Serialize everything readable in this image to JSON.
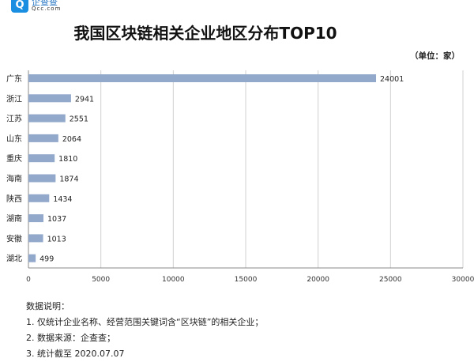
{
  "logo": {
    "name": "企查查",
    "domain": "Qcc.com",
    "accent": "#1a8ee0"
  },
  "chart_data": {
    "type": "bar",
    "orientation": "horizontal",
    "title": "我国区块链相关企业地区分布TOP10",
    "unit": "（单位：家）",
    "categories": [
      "广东",
      "浙江",
      "江苏",
      "山东",
      "重庆",
      "海南",
      "陕西",
      "湖南",
      "安徽",
      "湖北"
    ],
    "values": [
      24001,
      2941,
      2551,
      2064,
      1810,
      1874,
      1434,
      1037,
      1013,
      499
    ],
    "xlim": [
      0,
      30000
    ],
    "xticks": [
      "0",
      "5000",
      "10000",
      "15000",
      "20000",
      "25000",
      "30000"
    ],
    "grid": "vertical",
    "bar_color": "#93a9cc"
  },
  "notes": [
    "数据说明：",
    "1. 仅统计企业名称、经营范围关键词含“区块链”的相关企业；",
    "2. 数据来源：企查查；",
    "3. 统计截至 2020.07.07"
  ]
}
